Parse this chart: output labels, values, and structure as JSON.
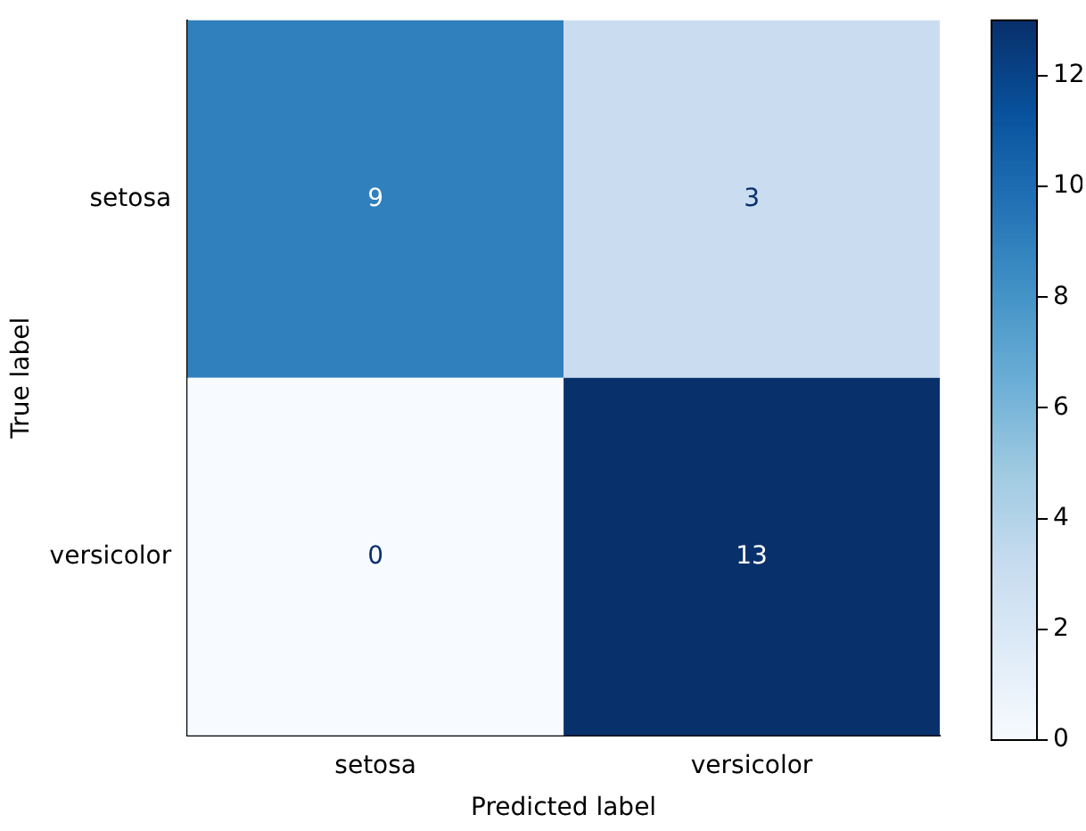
{
  "chart_data": {
    "type": "heatmap",
    "xlabel": "Predicted label",
    "ylabel": "True label",
    "categories": [
      "setosa",
      "versicolor"
    ],
    "y_categories": [
      "setosa",
      "versicolor"
    ],
    "cells": [
      [
        9,
        3
      ],
      [
        0,
        13
      ]
    ],
    "data_labels": true,
    "clim": [
      0,
      13
    ],
    "cticks": [
      0,
      2,
      4,
      6,
      8,
      10,
      12
    ]
  }
}
